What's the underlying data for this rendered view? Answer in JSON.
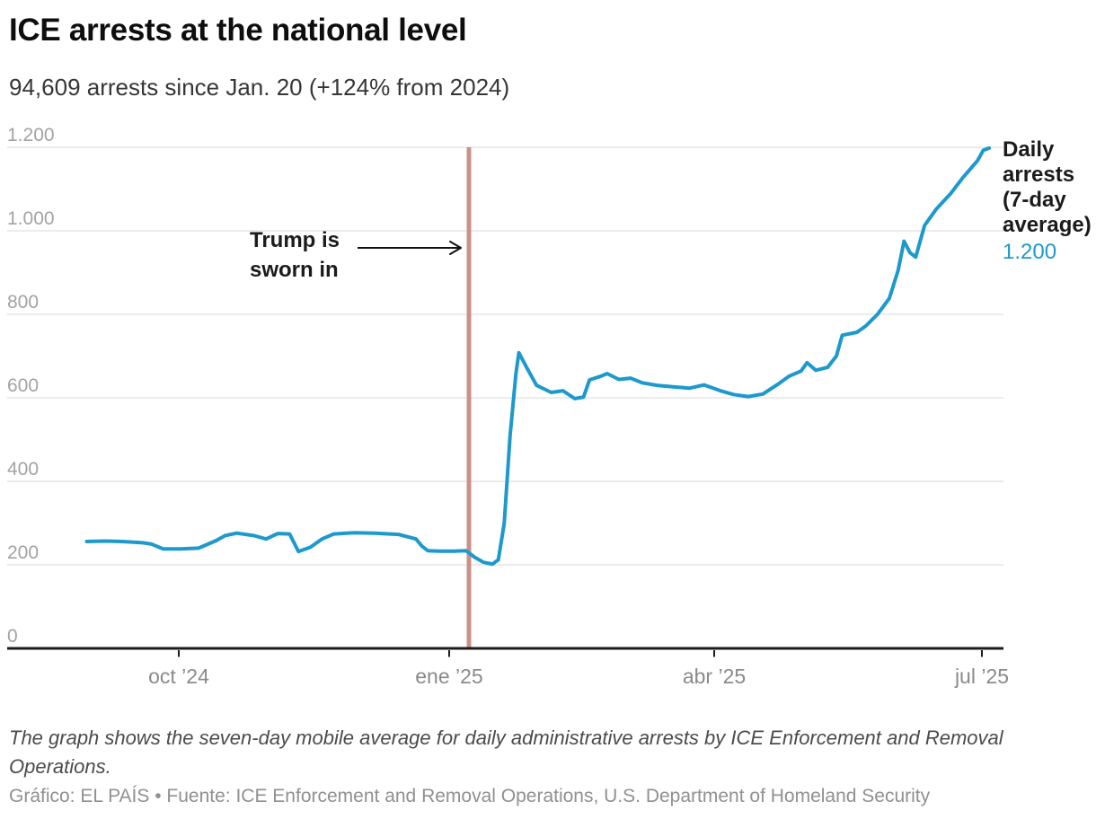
{
  "chart_data": {
    "type": "line",
    "title": "ICE arrests at the national level",
    "subtitle": "94,609 arrests since Jan. 20 (+124% from 2024)",
    "ylim": [
      0,
      1200
    ],
    "grid": "horizontal",
    "y_ticks": [
      {
        "value": 0,
        "label": "0"
      },
      {
        "value": 200,
        "label": "200"
      },
      {
        "value": 400,
        "label": "400"
      },
      {
        "value": 600,
        "label": "600"
      },
      {
        "value": 800,
        "label": "800"
      },
      {
        "value": 1000,
        "label": "1.000"
      },
      {
        "value": 1200,
        "label": "1.200"
      }
    ],
    "x_tick_labels": [
      "oct ’24",
      "ene ’25",
      "abr ’25",
      "jul ’25"
    ],
    "series": [
      {
        "name": "Daily arrests (7-day average)",
        "color": "#1d99cc",
        "points": [
          [
            "2024-09-12",
            256
          ],
          [
            "2024-09-18",
            257
          ],
          [
            "2024-09-24",
            256
          ],
          [
            "2024-10-01",
            253
          ],
          [
            "2024-10-04",
            250
          ],
          [
            "2024-10-08",
            238
          ],
          [
            "2024-10-14",
            238
          ],
          [
            "2024-10-20",
            240
          ],
          [
            "2024-10-26",
            258
          ],
          [
            "2024-10-29",
            270
          ],
          [
            "2024-11-02",
            276
          ],
          [
            "2024-11-08",
            270
          ],
          [
            "2024-11-12",
            262
          ],
          [
            "2024-11-16",
            275
          ],
          [
            "2024-11-20",
            274
          ],
          [
            "2024-11-23",
            232
          ],
          [
            "2024-11-27",
            242
          ],
          [
            "2024-12-01",
            262
          ],
          [
            "2024-12-05",
            274
          ],
          [
            "2024-12-12",
            277
          ],
          [
            "2024-12-19",
            276
          ],
          [
            "2024-12-27",
            273
          ],
          [
            "2025-01-02",
            262
          ],
          [
            "2025-01-04",
            245
          ],
          [
            "2025-01-06",
            234
          ],
          [
            "2025-01-10",
            233
          ],
          [
            "2025-01-15",
            233
          ],
          [
            "2025-01-19",
            234
          ],
          [
            "2025-01-22",
            218
          ],
          [
            "2025-01-25",
            206
          ],
          [
            "2025-01-28",
            202
          ],
          [
            "2025-01-30",
            212
          ],
          [
            "2025-02-01",
            300
          ],
          [
            "2025-02-03",
            510
          ],
          [
            "2025-02-05",
            660
          ],
          [
            "2025-02-06",
            708
          ],
          [
            "2025-02-09",
            668
          ],
          [
            "2025-02-12",
            630
          ],
          [
            "2025-02-17",
            613
          ],
          [
            "2025-02-21",
            617
          ],
          [
            "2025-02-25",
            598
          ],
          [
            "2025-02-28",
            602
          ],
          [
            "2025-03-02",
            643
          ],
          [
            "2025-03-06",
            652
          ],
          [
            "2025-03-08",
            658
          ],
          [
            "2025-03-12",
            644
          ],
          [
            "2025-03-16",
            647
          ],
          [
            "2025-03-20",
            636
          ],
          [
            "2025-03-25",
            630
          ],
          [
            "2025-03-31",
            626
          ],
          [
            "2025-04-05",
            623
          ],
          [
            "2025-04-10",
            631
          ],
          [
            "2025-04-16",
            616
          ],
          [
            "2025-04-20",
            608
          ],
          [
            "2025-04-25",
            603
          ],
          [
            "2025-04-30",
            609
          ],
          [
            "2025-05-05",
            632
          ],
          [
            "2025-05-09",
            652
          ],
          [
            "2025-05-13",
            664
          ],
          [
            "2025-05-15",
            684
          ],
          [
            "2025-05-18",
            666
          ],
          [
            "2025-05-22",
            673
          ],
          [
            "2025-05-25",
            700
          ],
          [
            "2025-05-27",
            750
          ],
          [
            "2025-06-01",
            757
          ],
          [
            "2025-06-04",
            772
          ],
          [
            "2025-06-08",
            800
          ],
          [
            "2025-06-12",
            838
          ],
          [
            "2025-06-15",
            905
          ],
          [
            "2025-06-17",
            975
          ],
          [
            "2025-06-19",
            948
          ],
          [
            "2025-06-21",
            937
          ],
          [
            "2025-06-24",
            1013
          ],
          [
            "2025-06-28",
            1052
          ],
          [
            "2025-07-03",
            1090
          ],
          [
            "2025-07-07",
            1127
          ],
          [
            "2025-07-12",
            1168
          ],
          [
            "2025-07-14",
            1193
          ],
          [
            "2025-07-16",
            1198
          ]
        ]
      }
    ],
    "annotations": {
      "inauguration_line": {
        "label": "Trump is sworn in",
        "color": "#cb9087"
      }
    },
    "end_label": {
      "text": "Daily arrests (7-day average)",
      "value_label": "1.200"
    },
    "axis_colors": {
      "grid": "#ececec",
      "axis": "#1c1c1c",
      "y_label": "#a3a3a3",
      "x_label": "#8a8a8a"
    }
  },
  "footer": {
    "note": "The graph shows the seven-day mobile average for daily administrative arrests by ICE Enforcement and Removal Operations.",
    "source": "Gráfico: EL PAÍS • Fuente: ICE Enforcement and Removal Operations, U.S. Department of Homeland Security"
  }
}
